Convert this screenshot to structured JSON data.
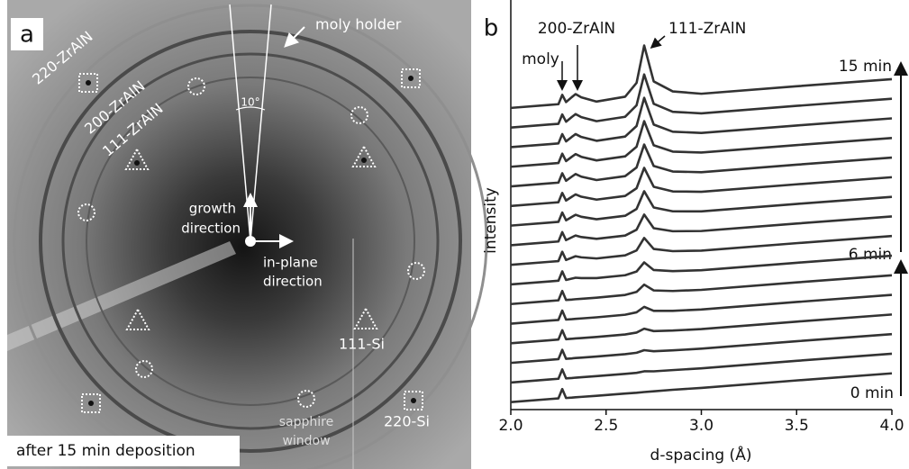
{
  "panel_a": {
    "letter": "a",
    "moly_holder": "moly holder",
    "ring_220": "220-ZrAlN",
    "ring_200": "200-ZrAlN",
    "ring_111": "111-ZrAlN",
    "angle": "10°",
    "growth": [
      "growth",
      "direction"
    ],
    "in_plane": [
      "in-plane",
      "direction"
    ],
    "si_111": "111-Si",
    "sapphire": [
      "sapphire",
      "window"
    ],
    "si_220": "220-Si",
    "caption": "after 15 min deposition"
  },
  "chart_data": {
    "type": "line",
    "panel": "b",
    "xlabel": "d-spacing (Å)",
    "ylabel": "intensity",
    "color": "#333333",
    "xlim": [
      2.0,
      4.0
    ],
    "ylim": [
      0,
      100
    ],
    "xticks": [
      {
        "value": 2,
        "label": "2.0"
      },
      2.5,
      {
        "value": 3,
        "label": "3.0"
      },
      3.5,
      {
        "value": 4,
        "label": "4.0"
      }
    ],
    "annotations": {
      "moly": "moly",
      "peak_200": "200-ZrAlN",
      "peak_111": "111-ZrAlN",
      "t15": "15 min",
      "t6": "6 min",
      "t0": "0 min"
    },
    "x": [
      2.0,
      2.2,
      2.25,
      2.27,
      2.29,
      2.32,
      2.34,
      2.37,
      2.45,
      2.6,
      2.66,
      2.7,
      2.75,
      2.85,
      3.0,
      3.5,
      4.0
    ],
    "series": [
      {
        "values": [
          2,
          2.8,
          3,
          5.5,
          3.1,
          3.2,
          3.3,
          3.4,
          3.7,
          4.3,
          4.5,
          4.7,
          4.9,
          5.3,
          5.8,
          7.8,
          9.7
        ]
      },
      {
        "values": [
          7.25,
          8.05,
          8.25,
          10.75,
          8.35,
          8.45,
          8.55,
          8.65,
          8.95,
          9.57,
          9.84,
          10.25,
          10.24,
          10.57,
          11.05,
          13.05,
          14.95
        ]
      },
      {
        "values": [
          12.5,
          13.3,
          13.5,
          16,
          13.6,
          13.7,
          13.8,
          13.9,
          14.2,
          14.84,
          15.21,
          15.9,
          15.61,
          15.86,
          16.3,
          18.3,
          20.2
        ]
      },
      {
        "values": [
          17.75,
          18.55,
          18.75,
          21.25,
          18.85,
          18.95,
          19.05,
          19.15,
          19.45,
          20.11,
          20.61,
          21.65,
          21.01,
          21.15,
          21.55,
          23.55,
          25.45
        ]
      },
      {
        "values": [
          23,
          23.8,
          24,
          26.5,
          24.1,
          24.2,
          24.3,
          24.4,
          24.7,
          25.39,
          26.04,
          27.5,
          26.44,
          26.44,
          26.8,
          28.8,
          30.7
        ]
      },
      {
        "values": [
          28.25,
          29.05,
          29.25,
          31.75,
          29.35,
          29.45,
          29.55,
          29.65,
          29.95,
          30.68,
          31.5,
          33.45,
          31.9,
          31.75,
          32.05,
          34.05,
          35.95
        ]
      },
      {
        "values": [
          33.5,
          34.3,
          34.5,
          37,
          34.7,
          35.05,
          35.3,
          35.2,
          35.2,
          35.96,
          36.96,
          39.4,
          37.36,
          37.06,
          37.3,
          39.3,
          41.2
        ]
      },
      {
        "values": [
          38.75,
          39.55,
          39.75,
          42.25,
          40.05,
          40.65,
          41.05,
          40.75,
          40.45,
          41.28,
          42.6,
          45.95,
          43,
          42.41,
          42.55,
          44.55,
          46.45
        ]
      },
      {
        "values": [
          44,
          44.8,
          45,
          47.5,
          45.36,
          46.11,
          46.6,
          46.18,
          45.7,
          46.58,
          48.15,
          52.2,
          48.55,
          47.74,
          47.8,
          49.8,
          51.7
        ]
      },
      {
        "values": [
          49.25,
          50.05,
          50.25,
          52.75,
          50.67,
          51.57,
          52.15,
          51.61,
          50.95,
          51.88,
          53.7,
          58.45,
          54.1,
          53.07,
          53.05,
          55.05,
          56.95
        ]
      },
      {
        "values": [
          54.5,
          55.3,
          55.5,
          58,
          55.96,
          56.96,
          57.6,
          56.98,
          56.2,
          57.18,
          59.25,
          64.7,
          59.65,
          58.4,
          58.3,
          60.3,
          62.2
        ]
      },
      {
        "values": [
          59.75,
          60.55,
          60.75,
          63.25,
          61.25,
          62.35,
          63.05,
          62.35,
          61.45,
          62.48,
          64.8,
          70.95,
          65.2,
          63.73,
          63.55,
          65.55,
          67.45
        ]
      },
      {
        "values": [
          65,
          65.8,
          66,
          68.5,
          66.52,
          67.67,
          68.4,
          67.66,
          66.7,
          67.78,
          70.35,
          77.2,
          70.75,
          69.06,
          68.8,
          70.8,
          72.7
        ]
      },
      {
        "values": [
          70.25,
          71.05,
          71.25,
          73.75,
          71.79,
          72.99,
          73.75,
          72.97,
          71.95,
          73.08,
          75.9,
          83.45,
          76.3,
          74.39,
          74.05,
          76.05,
          77.95
        ]
      },
      {
        "values": [
          75.5,
          76.3,
          76.5,
          79,
          77.06,
          78.31,
          79.1,
          78.28,
          77.2,
          78.38,
          81.45,
          89.7,
          81.85,
          79.72,
          79.3,
          81.3,
          83.2
        ]
      },
      {
        "values": [
          80.75,
          81.55,
          81.75,
          84.25,
          82.33,
          83.63,
          84.45,
          83.59,
          82.45,
          83.75,
          87.45,
          97.45,
          87.85,
          85.17,
          84.55,
          86.55,
          88.45
        ]
      }
    ]
  }
}
